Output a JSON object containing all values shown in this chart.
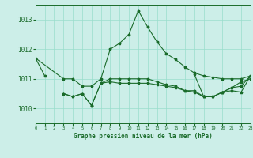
{
  "background_color": "#cceee8",
  "grid_color": "#99ddcc",
  "line_color": "#1a6b2a",
  "xlabel": "Graphe pression niveau de la mer (hPa)",
  "xlim": [
    0,
    23
  ],
  "ylim": [
    1009.5,
    1013.5
  ],
  "yticks": [
    1010,
    1011,
    1012,
    1013
  ],
  "xtick_labels": [
    "0",
    "1",
    "2",
    "3",
    "4",
    "5",
    "6",
    "7",
    "8",
    "9",
    "10",
    "11",
    "12",
    "13",
    "14",
    "15",
    "16",
    "17",
    "18",
    "19",
    "20",
    "21",
    "22",
    "23"
  ],
  "series": [
    {
      "x": [
        0,
        1
      ],
      "y": [
        1011.7,
        1011.1
      ]
    },
    {
      "x": [
        0,
        3,
        4,
        5,
        6,
        7,
        8,
        9,
        10,
        11,
        12,
        13,
        14,
        15,
        16,
        17,
        18,
        19,
        20,
        21,
        22,
        23
      ],
      "y": [
        1011.7,
        1011.0,
        1011.0,
        1010.75,
        1010.75,
        1011.0,
        1012.0,
        1012.2,
        1012.5,
        1013.3,
        1012.75,
        1012.25,
        1011.85,
        1011.65,
        1011.4,
        1011.2,
        1011.1,
        1011.05,
        1011.0,
        1011.0,
        1011.0,
        1011.1
      ]
    },
    {
      "x": [
        3,
        4,
        5,
        6,
        7,
        8,
        9,
        10,
        11,
        12,
        13,
        14,
        15,
        16,
        17,
        18,
        19,
        20,
        21,
        22,
        23
      ],
      "y": [
        1010.5,
        1010.4,
        1010.5,
        1010.1,
        1010.85,
        1011.0,
        1011.0,
        1011.0,
        1011.0,
        1011.0,
        1010.9,
        1010.8,
        1010.75,
        1010.6,
        1010.6,
        1010.4,
        1010.4,
        1010.55,
        1010.7,
        1010.75,
        1011.1
      ]
    },
    {
      "x": [
        3,
        4,
        5,
        6,
        7,
        8,
        9,
        10,
        11,
        12,
        13,
        14,
        15,
        16,
        17,
        18,
        19,
        20,
        21,
        22,
        23
      ],
      "y": [
        1010.5,
        1010.4,
        1010.5,
        1010.1,
        1010.85,
        1010.9,
        1010.85,
        1010.85,
        1010.85,
        1010.85,
        1010.8,
        1010.75,
        1010.7,
        1010.6,
        1010.55,
        1010.4,
        1010.4,
        1010.55,
        1010.6,
        1010.55,
        1011.1
      ]
    },
    {
      "x": [
        17,
        18,
        19,
        20,
        21,
        22,
        23
      ],
      "y": [
        1011.15,
        1010.4,
        1010.4,
        1010.55,
        1010.7,
        1010.9,
        1011.0
      ]
    }
  ]
}
